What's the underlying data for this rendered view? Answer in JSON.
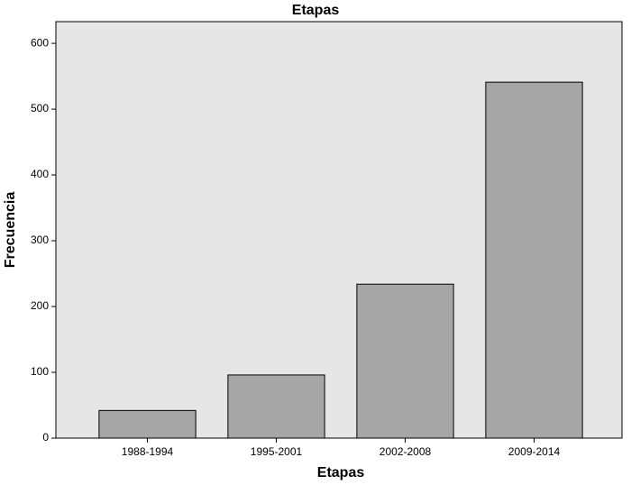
{
  "chart_data": {
    "type": "bar",
    "title": "Etapas",
    "x_label": "Etapas",
    "y_label": "Frecuencia",
    "categories": [
      "1988-1994",
      "1995-2001",
      "2002-2008",
      "2009-2014"
    ],
    "values": [
      42,
      96,
      234,
      541
    ],
    "color": "#a6a6a6",
    "ylim": [
      0,
      633
    ],
    "yticks": [
      0,
      100,
      200,
      300,
      400,
      500,
      600
    ],
    "grid": false
  }
}
